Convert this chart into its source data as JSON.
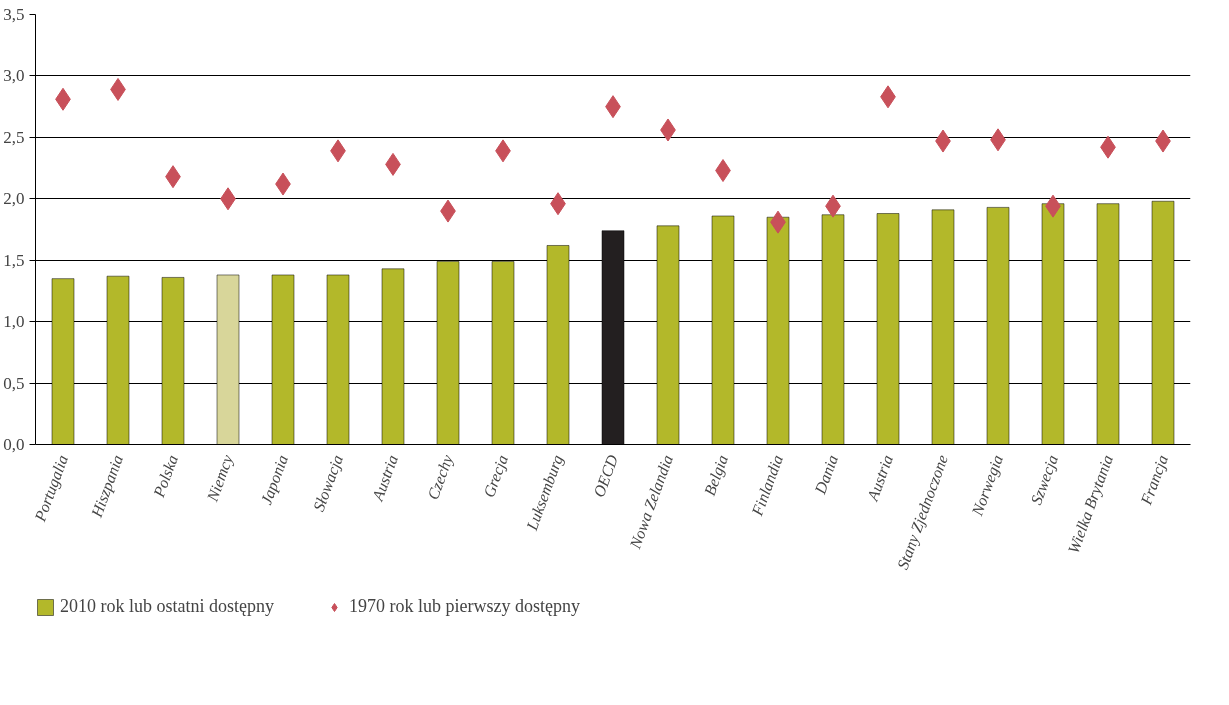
{
  "chart_data": {
    "type": "bar",
    "categories": [
      "Portugalia",
      "Hiszpania",
      "Polska",
      "Niemcy",
      "Japonia",
      "Słowacja",
      "Austria",
      "Czechy",
      "Grecja",
      "Luksemburg",
      "OECD",
      "Nowa Zelandia",
      "Belgia",
      "Finlandia",
      "Dania",
      "Austria",
      "Stany Zjednoczone",
      "Norwegia",
      "Szwecja",
      "Wielka Brytania",
      "Francja"
    ],
    "series": [
      {
        "name": "2010 rok lub ostatni dostępny",
        "color": "#b3b82a",
        "colors": [
          "#b3b82a",
          "#b3b82a",
          "#b3b82a",
          "#d8d69a",
          "#b3b82a",
          "#b3b82a",
          "#b3b82a",
          "#b3b82a",
          "#b3b82a",
          "#b3b82a",
          "#231f20",
          "#b3b82a",
          "#b3b82a",
          "#b3b82a",
          "#b3b82a",
          "#b3b82a",
          "#b3b82a",
          "#b3b82a",
          "#b3b82a",
          "#b3b82a",
          "#b3b82a"
        ],
        "values": [
          1.35,
          1.37,
          1.36,
          1.38,
          1.38,
          1.38,
          1.43,
          1.49,
          1.49,
          1.62,
          1.74,
          1.78,
          1.86,
          1.85,
          1.87,
          1.88,
          1.91,
          1.93,
          1.96,
          1.96,
          1.98
        ]
      },
      {
        "name": "1970 rok lub pierwszy dostępny",
        "type": "scatter",
        "marker": "diamond",
        "color": "#c8505a",
        "values": [
          2.81,
          2.89,
          2.18,
          2.0,
          2.12,
          2.39,
          2.28,
          1.9,
          2.39,
          1.96,
          2.75,
          2.56,
          2.23,
          1.81,
          1.94,
          2.83,
          2.47,
          2.48,
          1.94,
          2.42,
          2.47
        ]
      }
    ],
    "ylim": [
      0,
      3.5
    ],
    "yticks": [
      {
        "value": 0,
        "label": "0,0"
      },
      {
        "value": 0.5,
        "label": "0,5"
      },
      {
        "value": 1,
        "label": "1,0"
      },
      {
        "value": 1.5,
        "label": "1,5"
      },
      {
        "value": 2,
        "label": "2,0"
      },
      {
        "value": 2.5,
        "label": "2,5"
      },
      {
        "value": 3,
        "label": "3,0"
      },
      {
        "value": 3.5,
        "label": "3,5"
      }
    ],
    "grid": "y",
    "legend": "bottom left"
  }
}
